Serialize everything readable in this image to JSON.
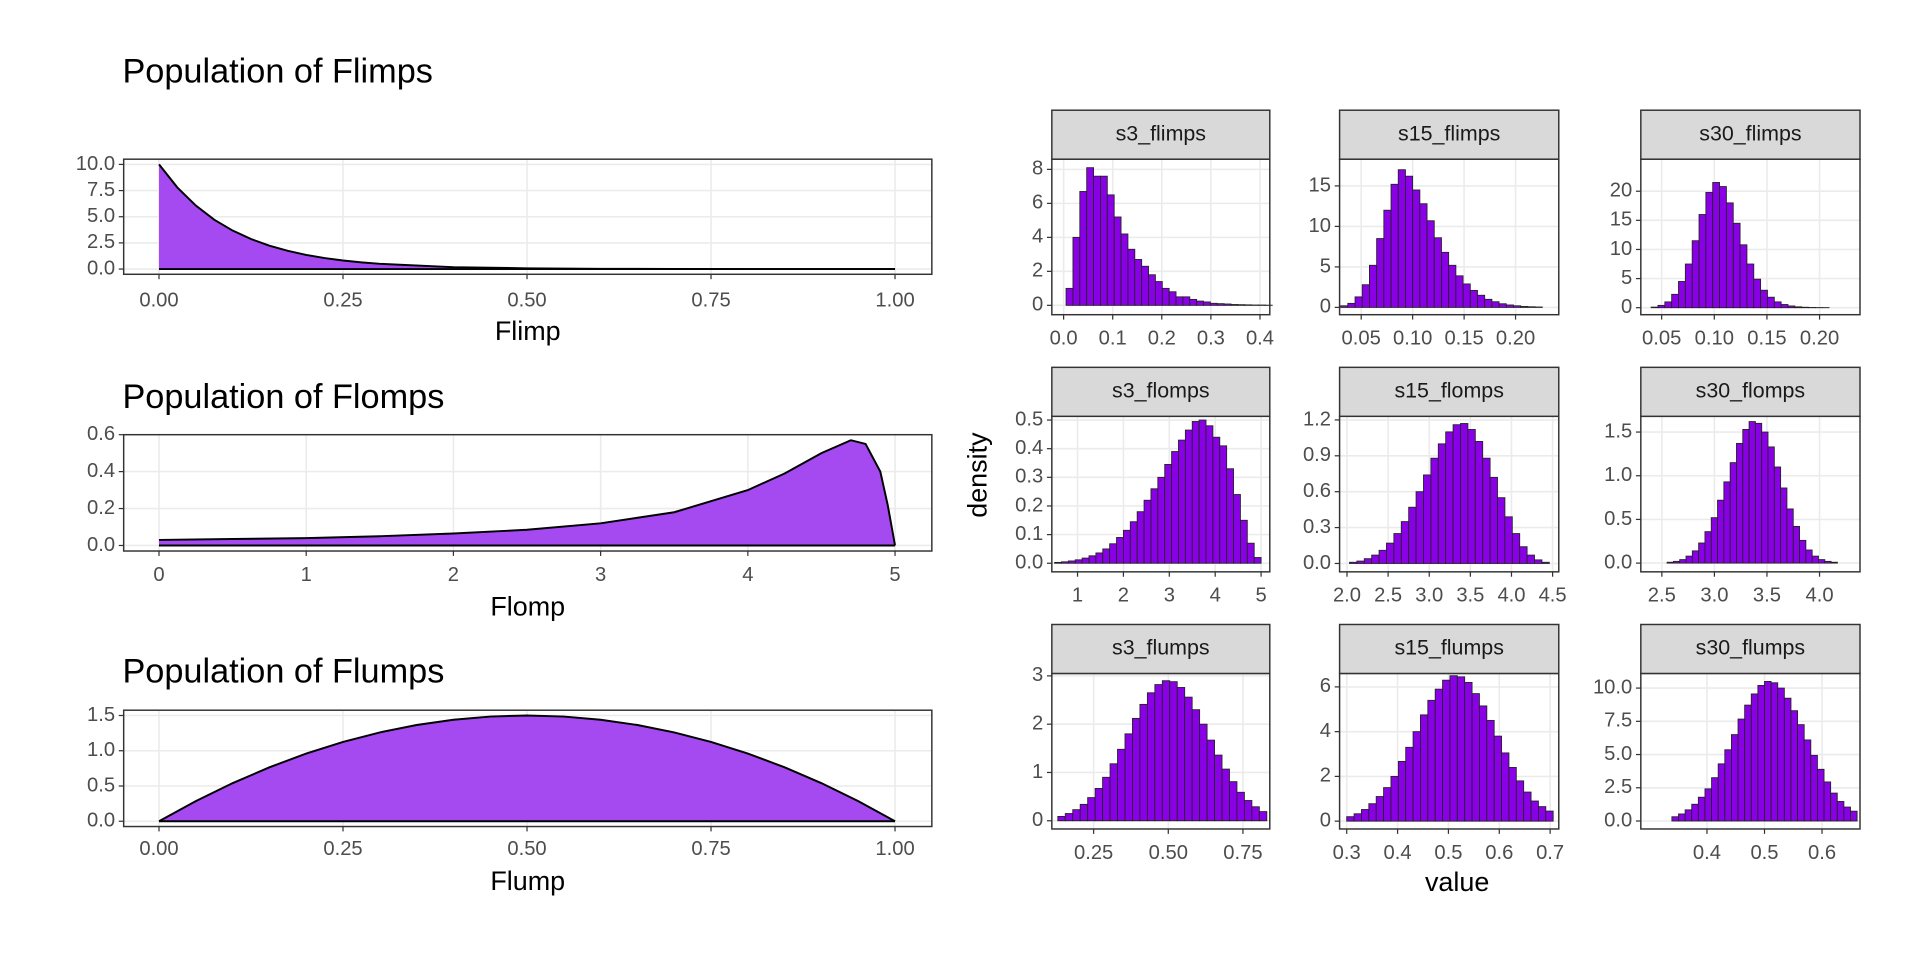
{
  "shared_axes": {
    "y_label": "density",
    "x_label": "value"
  },
  "chart_data": [
    {
      "type": "area",
      "title": "Population of Flimps",
      "x_label": "Flimp",
      "color": "#a040f0",
      "x": [
        0,
        0.025,
        0.05,
        0.075,
        0.1,
        0.125,
        0.15,
        0.175,
        0.2,
        0.225,
        0.25,
        0.275,
        0.3,
        0.4,
        0.5,
        0.6,
        0.7,
        0.8,
        0.9,
        1
      ],
      "values": [
        10,
        7.79,
        6.07,
        4.72,
        3.68,
        2.87,
        2.23,
        1.74,
        1.35,
        1.05,
        0.82,
        0.64,
        0.5,
        0.18,
        0.07,
        0.02,
        0.01,
        0,
        0,
        0
      ],
      "xlim": [
        -0.048,
        1.05
      ],
      "ylim": [
        -0.5,
        10.5
      ],
      "xticks": [
        {
          "value": 0,
          "label": "0.00"
        },
        {
          "value": 0.25,
          "label": "0.25"
        },
        {
          "value": 0.5,
          "label": "0.50"
        },
        {
          "value": 0.75,
          "label": "0.75"
        },
        {
          "value": 1,
          "label": "1.00"
        }
      ],
      "yticks": [
        {
          "value": 0,
          "label": "0.0"
        },
        2.5,
        {
          "value": 5,
          "label": "5.0"
        },
        7.5,
        {
          "value": 10,
          "label": "10.0"
        }
      ],
      "grid": true
    },
    {
      "type": "area",
      "title": "Population of Flomps",
      "x_label": "Flomp",
      "color": "#a040f0",
      "x": [
        0,
        0.5,
        1,
        1.5,
        2,
        2.5,
        3,
        3.5,
        4,
        4.25,
        4.5,
        4.7,
        4.8,
        4.9,
        4.95,
        5
      ],
      "values": [
        0.03,
        0.035,
        0.04,
        0.05,
        0.065,
        0.085,
        0.12,
        0.18,
        0.3,
        0.39,
        0.5,
        0.57,
        0.55,
        0.4,
        0.22,
        0
      ],
      "xlim": [
        -0.24,
        5.25
      ],
      "ylim": [
        -0.03,
        0.6
      ],
      "xticks": [
        0,
        1,
        2,
        3,
        4,
        5
      ],
      "yticks": [
        {
          "value": 0,
          "label": "0.0"
        },
        0.2,
        0.4,
        0.6
      ],
      "grid": true
    },
    {
      "type": "area",
      "title": "Population of Flumps",
      "x_label": "Flump",
      "color": "#a040f0",
      "x": [
        0,
        0.05,
        0.1,
        0.15,
        0.2,
        0.25,
        0.3,
        0.35,
        0.4,
        0.45,
        0.5,
        0.55,
        0.6,
        0.65,
        0.7,
        0.75,
        0.8,
        0.85,
        0.9,
        0.95,
        1
      ],
      "values": [
        0,
        0.285,
        0.54,
        0.765,
        0.96,
        1.125,
        1.26,
        1.365,
        1.44,
        1.485,
        1.5,
        1.485,
        1.44,
        1.365,
        1.26,
        1.125,
        0.96,
        0.765,
        0.54,
        0.285,
        0
      ],
      "xlim": [
        -0.048,
        1.05
      ],
      "ylim": [
        -0.075,
        1.575
      ],
      "xticks": [
        {
          "value": 0,
          "label": "0.00"
        },
        {
          "value": 0.25,
          "label": "0.25"
        },
        {
          "value": 0.5,
          "label": "0.50"
        },
        {
          "value": 0.75,
          "label": "0.75"
        },
        {
          "value": 1,
          "label": "1.00"
        }
      ],
      "yticks": [
        {
          "value": 0,
          "label": "0.0"
        },
        0.5,
        {
          "value": 1,
          "label": "1.0"
        },
        1.5
      ],
      "grid": true
    },
    {
      "type": "histogram",
      "title": "s3_flimps",
      "color": "#8a00e6",
      "bins": [
        0.005,
        0.019,
        0.033,
        0.047,
        0.061,
        0.075,
        0.089,
        0.103,
        0.117,
        0.131,
        0.145,
        0.159,
        0.173,
        0.187,
        0.201,
        0.215,
        0.229,
        0.243,
        0.257,
        0.271,
        0.285,
        0.299,
        0.313,
        0.327,
        0.341,
        0.355,
        0.369,
        0.383,
        0.397,
        0.411,
        0.425
      ],
      "values": [
        1.0,
        4.0,
        6.7,
        8.1,
        7.6,
        7.6,
        6.5,
        5.2,
        4.2,
        3.3,
        2.7,
        2.3,
        1.8,
        1.4,
        1.0,
        0.8,
        0.5,
        0.5,
        0.35,
        0.25,
        0.2,
        0.12,
        0.1,
        0.08,
        0.05,
        0.04,
        0.03,
        0.02,
        0.02,
        0.01
      ],
      "xlim": [
        -0.024,
        0.42
      ],
      "ylim": [
        -0.55,
        8.6
      ],
      "xticks": [
        {
          "value": 0,
          "label": "0.0"
        },
        0.1,
        0.2,
        0.3,
        0.4
      ],
      "yticks": [
        0,
        2,
        4,
        6,
        8
      ],
      "grid": true
    },
    {
      "type": "histogram",
      "title": "s15_flimps",
      "color": "#8a00e6",
      "bins": [
        0.03,
        0.037,
        0.044,
        0.051,
        0.058,
        0.065,
        0.072,
        0.079,
        0.086,
        0.093,
        0.1,
        0.107,
        0.114,
        0.121,
        0.128,
        0.135,
        0.142,
        0.149,
        0.156,
        0.163,
        0.17,
        0.177,
        0.184,
        0.191,
        0.198,
        0.205,
        0.212,
        0.219,
        0.226
      ],
      "values": [
        0.2,
        0.5,
        1.3,
        2.8,
        5.2,
        8.5,
        12.0,
        15.2,
        17.0,
        16.2,
        14.5,
        12.8,
        10.7,
        8.6,
        6.8,
        5.2,
        3.9,
        2.9,
        2.1,
        1.5,
        1.0,
        0.7,
        0.45,
        0.3,
        0.2,
        0.12,
        0.08,
        0.05
      ],
      "xlim": [
        0.029,
        0.242
      ],
      "ylim": [
        -0.9,
        18.3
      ],
      "xticks": [
        0.05,
        {
          "value": 0.1,
          "label": "0.10"
        },
        0.15,
        {
          "value": 0.2,
          "label": "0.20"
        }
      ],
      "yticks": [
        0,
        5,
        10,
        15
      ],
      "grid": true
    },
    {
      "type": "histogram",
      "title": "s30_flimps",
      "color": "#8a00e6",
      "bins": [
        0.04,
        0.0465,
        0.053,
        0.0595,
        0.066,
        0.0725,
        0.079,
        0.0855,
        0.092,
        0.0985,
        0.105,
        0.1115,
        0.118,
        0.1245,
        0.131,
        0.1375,
        0.144,
        0.1505,
        0.157,
        0.1635,
        0.17,
        0.1765,
        0.183,
        0.1895,
        0.196,
        0.2025,
        0.209
      ],
      "values": [
        0.1,
        0.4,
        1.0,
        2.3,
        4.5,
        7.5,
        11.5,
        16.0,
        19.8,
        21.5,
        20.8,
        18.0,
        14.5,
        10.8,
        7.5,
        4.9,
        3.0,
        1.8,
        1.0,
        0.55,
        0.3,
        0.15,
        0.08,
        0.04,
        0.02,
        0.01
      ],
      "xlim": [
        0.0302,
        0.2384
      ],
      "ylim": [
        -1.2,
        25.5
      ],
      "xticks": [
        0.05,
        {
          "value": 0.1,
          "label": "0.10"
        },
        0.15,
        {
          "value": 0.2,
          "label": "0.20"
        }
      ],
      "yticks": [
        0,
        5,
        10,
        15,
        20
      ],
      "grid": true
    },
    {
      "type": "histogram",
      "title": "s3_flomps",
      "color": "#8a00e6",
      "bins": [
        0.5,
        0.65,
        0.8,
        0.95,
        1.1,
        1.25,
        1.4,
        1.55,
        1.7,
        1.85,
        2.0,
        2.15,
        2.3,
        2.45,
        2.6,
        2.75,
        2.9,
        3.05,
        3.2,
        3.35,
        3.5,
        3.65,
        3.8,
        3.95,
        4.1,
        4.25,
        4.4,
        4.55,
        4.7,
        4.85,
        5.0
      ],
      "values": [
        0.003,
        0.005,
        0.008,
        0.012,
        0.018,
        0.026,
        0.036,
        0.05,
        0.068,
        0.09,
        0.115,
        0.145,
        0.18,
        0.22,
        0.26,
        0.3,
        0.345,
        0.39,
        0.43,
        0.465,
        0.495,
        0.5,
        0.48,
        0.44,
        0.41,
        0.33,
        0.24,
        0.15,
        0.07,
        0.02
      ],
      "xlim": [
        0.44,
        5.19
      ],
      "ylim": [
        -0.03,
        0.513
      ],
      "xticks": [
        1,
        2,
        3,
        4,
        5
      ],
      "yticks": [
        {
          "value": 0,
          "label": "0.0"
        },
        0.1,
        0.2,
        0.3,
        0.4,
        0.5
      ],
      "grid": true
    },
    {
      "type": "histogram",
      "title": "s15_flomps",
      "color": "#8a00e6",
      "bins": [
        2.03,
        2.12,
        2.21,
        2.3,
        2.39,
        2.48,
        2.57,
        2.66,
        2.75,
        2.84,
        2.93,
        3.02,
        3.11,
        3.2,
        3.29,
        3.38,
        3.47,
        3.56,
        3.65,
        3.74,
        3.83,
        3.92,
        4.01,
        4.1,
        4.19,
        4.28,
        4.37,
        4.46
      ],
      "values": [
        0.01,
        0.02,
        0.04,
        0.07,
        0.11,
        0.17,
        0.25,
        0.35,
        0.47,
        0.6,
        0.74,
        0.88,
        1.0,
        1.1,
        1.16,
        1.17,
        1.12,
        1.02,
        0.88,
        0.72,
        0.55,
        0.39,
        0.25,
        0.14,
        0.07,
        0.03,
        0.01
      ],
      "xlim": [
        1.91,
        4.575
      ],
      "ylim": [
        -0.07,
        1.23
      ],
      "xticks": [
        {
          "value": 2,
          "label": "2.0"
        },
        2.5,
        {
          "value": 3,
          "label": "3.0"
        },
        3.5,
        {
          "value": 4,
          "label": "4.0"
        },
        4.5
      ],
      "yticks": [
        {
          "value": 0,
          "label": "0.0"
        },
        0.3,
        0.6,
        0.9,
        1.2
      ],
      "grid": true
    },
    {
      "type": "histogram",
      "title": "s30_flomps",
      "color": "#8a00e6",
      "bins": [
        2.55,
        2.61,
        2.67,
        2.73,
        2.79,
        2.85,
        2.91,
        2.97,
        3.03,
        3.09,
        3.15,
        3.21,
        3.27,
        3.33,
        3.39,
        3.45,
        3.51,
        3.57,
        3.63,
        3.69,
        3.75,
        3.81,
        3.87,
        3.93,
        3.99,
        4.05,
        4.11,
        4.17
      ],
      "values": [
        0.01,
        0.02,
        0.04,
        0.08,
        0.14,
        0.23,
        0.36,
        0.52,
        0.72,
        0.93,
        1.15,
        1.37,
        1.53,
        1.62,
        1.6,
        1.5,
        1.33,
        1.1,
        0.86,
        0.62,
        0.42,
        0.26,
        0.15,
        0.08,
        0.04,
        0.02,
        0.01
      ],
      "xlim": [
        2.3,
        4.385
      ],
      "ylim": [
        -0.1,
        1.68
      ],
      "xticks": [
        2.5,
        {
          "value": 3,
          "label": "3.0"
        },
        3.5,
        {
          "value": 4,
          "label": "4.0"
        }
      ],
      "yticks": [
        {
          "value": 0,
          "label": "0.0"
        },
        0.5,
        {
          "value": 1,
          "label": "1.0"
        },
        1.5
      ],
      "grid": true
    },
    {
      "type": "histogram",
      "title": "s3_flumps",
      "color": "#8a00e6",
      "bins": [
        0.13,
        0.155,
        0.18,
        0.205,
        0.23,
        0.255,
        0.28,
        0.305,
        0.33,
        0.355,
        0.38,
        0.405,
        0.43,
        0.455,
        0.48,
        0.505,
        0.53,
        0.555,
        0.58,
        0.605,
        0.63,
        0.655,
        0.68,
        0.705,
        0.73,
        0.755,
        0.78,
        0.805,
        0.83
      ],
      "values": [
        0.09,
        0.15,
        0.23,
        0.34,
        0.48,
        0.67,
        0.9,
        1.18,
        1.48,
        1.8,
        2.12,
        2.41,
        2.65,
        2.82,
        2.9,
        2.88,
        2.76,
        2.56,
        2.3,
        2.0,
        1.67,
        1.36,
        1.07,
        0.81,
        0.59,
        0.42,
        0.29,
        0.19
      ],
      "xlim": [
        0.11,
        0.84
      ],
      "ylim": [
        -0.17,
        3.05
      ],
      "xticks": [
        0.25,
        {
          "value": 0.5,
          "label": "0.50"
        },
        0.75
      ],
      "yticks": [
        0,
        1,
        2,
        3
      ],
      "grid": true
    },
    {
      "type": "histogram",
      "title": "s15_flumps",
      "color": "#8a00e6",
      "bins": [
        0.3,
        0.3145,
        0.329,
        0.3435,
        0.358,
        0.3725,
        0.387,
        0.4015,
        0.416,
        0.4305,
        0.445,
        0.4595,
        0.474,
        0.4885,
        0.503,
        0.5175,
        0.532,
        0.5465,
        0.561,
        0.5755,
        0.59,
        0.6045,
        0.619,
        0.6335,
        0.648,
        0.6625,
        0.677,
        0.6915,
        0.706
      ],
      "values": [
        0.2,
        0.33,
        0.52,
        0.78,
        1.1,
        1.5,
        2.0,
        2.67,
        3.3,
        4.0,
        4.75,
        5.4,
        5.9,
        6.3,
        6.5,
        6.45,
        6.2,
        5.7,
        5.15,
        4.5,
        3.8,
        3.05,
        2.4,
        1.8,
        1.3,
        0.9,
        0.65,
        0.45
      ],
      "xlim": [
        0.286,
        0.717
      ],
      "ylim": [
        -0.35,
        6.6
      ],
      "xticks": [
        0.3,
        0.4,
        0.5,
        0.6,
        0.7
      ],
      "yticks": [
        0,
        2,
        4,
        6
      ],
      "grid": true
    },
    {
      "type": "histogram",
      "title": "s30_flumps",
      "color": "#8a00e6",
      "bins": [
        0.339,
        0.3505,
        0.362,
        0.3735,
        0.385,
        0.3965,
        0.408,
        0.4195,
        0.431,
        0.4425,
        0.454,
        0.4655,
        0.477,
        0.4885,
        0.5,
        0.5115,
        0.523,
        0.5345,
        0.546,
        0.5575,
        0.569,
        0.5805,
        0.592,
        0.6035,
        0.615,
        0.6265,
        0.638,
        0.6495,
        0.661
      ],
      "values": [
        0.32,
        0.53,
        0.84,
        1.26,
        1.79,
        2.42,
        3.26,
        4.3,
        5.36,
        6.5,
        7.67,
        8.72,
        9.56,
        10.2,
        10.5,
        10.4,
        10.0,
        9.24,
        8.3,
        7.25,
        6.1,
        4.94,
        3.89,
        2.94,
        2.1,
        1.47,
        1.05,
        0.74
      ],
      "xlim": [
        0.285,
        0.666
      ],
      "ylim": [
        -0.6,
        11.1
      ],
      "xticks": [
        0.4,
        0.5,
        0.6
      ],
      "yticks": [
        {
          "value": 0,
          "label": "0.0"
        },
        2.5,
        {
          "value": 5,
          "label": "5.0"
        },
        7.5,
        {
          "value": 10,
          "label": "10.0"
        }
      ],
      "grid": true
    }
  ]
}
